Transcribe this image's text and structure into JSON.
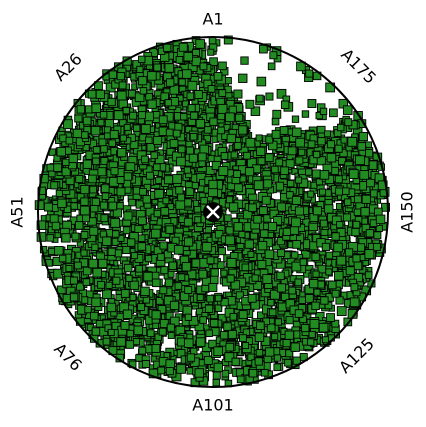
{
  "chart_data": {
    "type": "scatter",
    "coordinate_system": "polar",
    "marker": "square",
    "colors": {
      "marker_fill": "#228B22",
      "marker_edge": "#000000",
      "circle": "#000000",
      "center_mark": "#000000"
    },
    "angular_labels": [
      "A1",
      "A26",
      "A51",
      "A76",
      "A101",
      "A125",
      "A150",
      "A175"
    ],
    "center_marker": "x",
    "grid": false,
    "legend": "none",
    "title": "",
    "n_points_estimate": 4000,
    "radius_range": [
      0,
      1
    ],
    "angular_coverage_note": "A1 at top, angles increase counter-clockwise; sparse sector between A1 and A175 near the rim"
  }
}
